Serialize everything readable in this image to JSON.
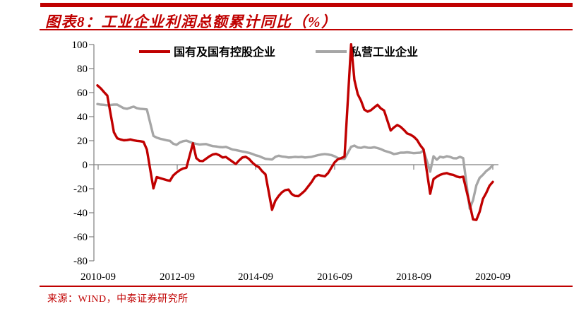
{
  "header": {
    "title": "图表8：工业企业利润总额累计同比（%）"
  },
  "footer": {
    "source": "来源：WIND，中泰证券研究所"
  },
  "colors": {
    "accent_red": "#c00000",
    "series_red": "#c00000",
    "series_gray": "#a6a6a6",
    "axis_gray": "#808080",
    "tick_text": "#000000"
  },
  "chart_data": {
    "type": "line",
    "title": "工业企业利润总额累计同比（%）",
    "xlabel": "",
    "ylabel": "",
    "ylim": [
      -80,
      100
    ],
    "ytick_step": 20,
    "grid": false,
    "legend_position": "top",
    "yticks": [
      "100",
      "80",
      "60",
      "40",
      "20",
      "0",
      "-20",
      "-40",
      "-60",
      "-80"
    ],
    "xticks": [
      "2010-09",
      "2012-09",
      "2014-09",
      "2016-09",
      "2018-09",
      "2020-09"
    ],
    "legend": [
      {
        "label": "国有及国有控股企业",
        "color": "#c00000"
      },
      {
        "label": "私营工业企业",
        "color": "#a6a6a6"
      }
    ],
    "series": [
      {
        "id": "soe",
        "name": "国有及国有控股企业",
        "color": "#c00000",
        "points": [
          [
            "2010-09",
            66
          ],
          [
            "2010-10",
            63.5
          ],
          [
            "2010-11",
            60.5
          ],
          [
            "2010-12",
            57.5
          ],
          [
            "2011-02",
            27
          ],
          [
            "2011-03",
            22
          ],
          [
            "2011-04",
            21
          ],
          [
            "2011-05",
            20.3
          ],
          [
            "2011-06",
            20.5
          ],
          [
            "2011-07",
            21
          ],
          [
            "2011-08",
            20.3
          ],
          [
            "2011-09",
            19.8
          ],
          [
            "2011-10",
            19.5
          ],
          [
            "2011-11",
            19
          ],
          [
            "2011-12",
            12.6
          ],
          [
            "2012-02",
            -19.7
          ],
          [
            "2012-03",
            -10.3
          ],
          [
            "2012-04",
            -11.2
          ],
          [
            "2012-05",
            -12
          ],
          [
            "2012-06",
            -12.8
          ],
          [
            "2012-07",
            -13.4
          ],
          [
            "2012-08",
            -9
          ],
          [
            "2012-09",
            -6.5
          ],
          [
            "2012-10",
            -4.5
          ],
          [
            "2012-11",
            -3.2
          ],
          [
            "2012-12",
            -2.5
          ],
          [
            "2013-02",
            17.8
          ],
          [
            "2013-03",
            5.5
          ],
          [
            "2013-04",
            3.2
          ],
          [
            "2013-05",
            3
          ],
          [
            "2013-06",
            5
          ],
          [
            "2013-07",
            7
          ],
          [
            "2013-08",
            8.5
          ],
          [
            "2013-09",
            9
          ],
          [
            "2013-10",
            7.8
          ],
          [
            "2013-11",
            6
          ],
          [
            "2013-12",
            6.4
          ],
          [
            "2014-02",
            2.5
          ],
          [
            "2014-03",
            0.6
          ],
          [
            "2014-04",
            3.6
          ],
          [
            "2014-05",
            6
          ],
          [
            "2014-06",
            6.6
          ],
          [
            "2014-07",
            4.8
          ],
          [
            "2014-08",
            1.8
          ],
          [
            "2014-09",
            -0.6
          ],
          [
            "2014-10",
            -2.1
          ],
          [
            "2014-11",
            -5.4
          ],
          [
            "2014-12",
            -8
          ],
          [
            "2015-02",
            -37.5
          ],
          [
            "2015-03",
            -30
          ],
          [
            "2015-04",
            -26
          ],
          [
            "2015-05",
            -23
          ],
          [
            "2015-06",
            -21.2
          ],
          [
            "2015-07",
            -20.7
          ],
          [
            "2015-08",
            -24.5
          ],
          [
            "2015-09",
            -26
          ],
          [
            "2015-10",
            -26.2
          ],
          [
            "2015-11",
            -24
          ],
          [
            "2015-12",
            -21.5
          ],
          [
            "2016-02",
            -14.5
          ],
          [
            "2016-03",
            -10
          ],
          [
            "2016-04",
            -8.5
          ],
          [
            "2016-05",
            -9.2
          ],
          [
            "2016-06",
            -9.7
          ],
          [
            "2016-07",
            -7
          ],
          [
            "2016-08",
            -2.5
          ],
          [
            "2016-09",
            2
          ],
          [
            "2016-10",
            4.5
          ],
          [
            "2016-11",
            5.5
          ],
          [
            "2016-12",
            6.7
          ],
          [
            "2017-02",
            100.2
          ],
          [
            "2017-03",
            70.5
          ],
          [
            "2017-04",
            58.7
          ],
          [
            "2017-05",
            53.3
          ],
          [
            "2017-06",
            45.8
          ],
          [
            "2017-07",
            44.2
          ],
          [
            "2017-08",
            45.3
          ],
          [
            "2017-09",
            47.6
          ],
          [
            "2017-10",
            49.8
          ],
          [
            "2017-11",
            46.9
          ],
          [
            "2017-12",
            45.1
          ],
          [
            "2018-02",
            28.5
          ],
          [
            "2018-03",
            31
          ],
          [
            "2018-04",
            33
          ],
          [
            "2018-05",
            31.5
          ],
          [
            "2018-06",
            29
          ],
          [
            "2018-07",
            26
          ],
          [
            "2018-08",
            25
          ],
          [
            "2018-09",
            23.3
          ],
          [
            "2018-10",
            20.6
          ],
          [
            "2018-11",
            16.1
          ],
          [
            "2018-12",
            12.6
          ],
          [
            "2019-02",
            -24.2
          ],
          [
            "2019-03",
            -12
          ],
          [
            "2019-04",
            -10
          ],
          [
            "2019-05",
            -8.5
          ],
          [
            "2019-06",
            -7.5
          ],
          [
            "2019-07",
            -7
          ],
          [
            "2019-08",
            -8
          ],
          [
            "2019-09",
            -8.5
          ],
          [
            "2019-10",
            -9.8
          ],
          [
            "2019-11",
            -10.5
          ],
          [
            "2019-12",
            -10
          ],
          [
            "2020-02",
            -32.9
          ],
          [
            "2020-03",
            -45.5
          ],
          [
            "2020-04",
            -46
          ],
          [
            "2020-05",
            -39.3
          ],
          [
            "2020-06",
            -28.5
          ],
          [
            "2020-07",
            -23.5
          ],
          [
            "2020-08",
            -17.5
          ],
          [
            "2020-09",
            -14.3
          ]
        ]
      },
      {
        "id": "private",
        "name": "私营工业企业",
        "color": "#a6a6a6",
        "points": [
          [
            "2010-09",
            50.5
          ],
          [
            "2010-10",
            50
          ],
          [
            "2010-11",
            49.8
          ],
          [
            "2010-12",
            49.5
          ],
          [
            "2011-02",
            50
          ],
          [
            "2011-03",
            50
          ],
          [
            "2011-04",
            48.5
          ],
          [
            "2011-05",
            47
          ],
          [
            "2011-06",
            46.5
          ],
          [
            "2011-07",
            47.5
          ],
          [
            "2011-08",
            48.3
          ],
          [
            "2011-09",
            47
          ],
          [
            "2011-10",
            46.5
          ],
          [
            "2011-11",
            46.3
          ],
          [
            "2011-12",
            46
          ],
          [
            "2012-02",
            24
          ],
          [
            "2012-03",
            22.5
          ],
          [
            "2012-04",
            21.6
          ],
          [
            "2012-05",
            21
          ],
          [
            "2012-06",
            20.3
          ],
          [
            "2012-07",
            19.8
          ],
          [
            "2012-08",
            17.5
          ],
          [
            "2012-09",
            16.5
          ],
          [
            "2012-10",
            18.5
          ],
          [
            "2012-11",
            19.5
          ],
          [
            "2012-12",
            20
          ],
          [
            "2013-02",
            18
          ],
          [
            "2013-03",
            17.3
          ],
          [
            "2013-04",
            16.8
          ],
          [
            "2013-05",
            17
          ],
          [
            "2013-06",
            17.2
          ],
          [
            "2013-07",
            16.2
          ],
          [
            "2013-08",
            15.5
          ],
          [
            "2013-09",
            15.2
          ],
          [
            "2013-10",
            14.7
          ],
          [
            "2013-11",
            14.5
          ],
          [
            "2013-12",
            14.8
          ],
          [
            "2014-02",
            12.6
          ],
          [
            "2014-03",
            12.2
          ],
          [
            "2014-04",
            11.6
          ],
          [
            "2014-05",
            11
          ],
          [
            "2014-06",
            10.5
          ],
          [
            "2014-07",
            9.8
          ],
          [
            "2014-08",
            9
          ],
          [
            "2014-09",
            7.8
          ],
          [
            "2014-10",
            7.2
          ],
          [
            "2014-11",
            6
          ],
          [
            "2014-12",
            4.9
          ],
          [
            "2015-02",
            4.3
          ],
          [
            "2015-03",
            6.5
          ],
          [
            "2015-04",
            7.5
          ],
          [
            "2015-05",
            6.8
          ],
          [
            "2015-06",
            6.5
          ],
          [
            "2015-07",
            6
          ],
          [
            "2015-08",
            6.2
          ],
          [
            "2015-09",
            6.5
          ],
          [
            "2015-10",
            6.3
          ],
          [
            "2015-11",
            6.5
          ],
          [
            "2015-12",
            6
          ],
          [
            "2016-02",
            6.5
          ],
          [
            "2016-03",
            7.3
          ],
          [
            "2016-04",
            8
          ],
          [
            "2016-05",
            8.5
          ],
          [
            "2016-06",
            8.8
          ],
          [
            "2016-07",
            8.5
          ],
          [
            "2016-08",
            8
          ],
          [
            "2016-09",
            7
          ],
          [
            "2016-10",
            5.5
          ],
          [
            "2016-11",
            5
          ],
          [
            "2016-12",
            4.8
          ],
          [
            "2017-02",
            14.9
          ],
          [
            "2017-03",
            15.9
          ],
          [
            "2017-04",
            14.3
          ],
          [
            "2017-05",
            14
          ],
          [
            "2017-06",
            14.8
          ],
          [
            "2017-07",
            14.2
          ],
          [
            "2017-08",
            14
          ],
          [
            "2017-09",
            14.5
          ],
          [
            "2017-10",
            13.8
          ],
          [
            "2017-11",
            13
          ],
          [
            "2017-12",
            11.7
          ],
          [
            "2018-02",
            10
          ],
          [
            "2018-03",
            8.8
          ],
          [
            "2018-04",
            9.3
          ],
          [
            "2018-05",
            10
          ],
          [
            "2018-06",
            10
          ],
          [
            "2018-07",
            10.3
          ],
          [
            "2018-08",
            10
          ],
          [
            "2018-09",
            9.6
          ],
          [
            "2018-10",
            9.8
          ],
          [
            "2018-11",
            10
          ],
          [
            "2018-12",
            11.9
          ],
          [
            "2019-02",
            -5.8
          ],
          [
            "2019-03",
            7
          ],
          [
            "2019-04",
            4.1
          ],
          [
            "2019-05",
            6.6
          ],
          [
            "2019-06",
            6
          ],
          [
            "2019-07",
            7
          ],
          [
            "2019-08",
            6.5
          ],
          [
            "2019-09",
            5.4
          ],
          [
            "2019-10",
            5.3
          ],
          [
            "2019-11",
            6.5
          ],
          [
            "2019-12",
            5.5
          ],
          [
            "2020-02",
            -36.6
          ],
          [
            "2020-03",
            -29.5
          ],
          [
            "2020-04",
            -17.2
          ],
          [
            "2020-05",
            -11
          ],
          [
            "2020-06",
            -8.4
          ],
          [
            "2020-07",
            -5.3
          ],
          [
            "2020-08",
            -3.3
          ],
          [
            "2020-09",
            -0.5
          ]
        ]
      }
    ]
  }
}
